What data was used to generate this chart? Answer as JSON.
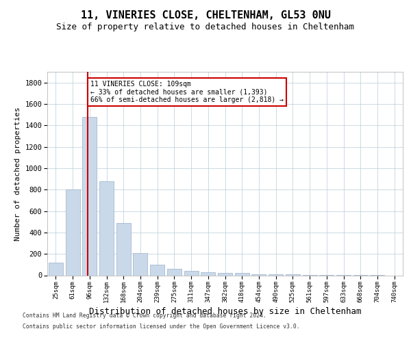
{
  "title1": "11, VINERIES CLOSE, CHELTENHAM, GL53 0NU",
  "title2": "Size of property relative to detached houses in Cheltenham",
  "xlabel": "Distribution of detached houses by size in Cheltenham",
  "ylabel": "Number of detached properties",
  "categories": [
    "25sqm",
    "61sqm",
    "96sqm",
    "132sqm",
    "168sqm",
    "204sqm",
    "239sqm",
    "275sqm",
    "311sqm",
    "347sqm",
    "382sqm",
    "418sqm",
    "454sqm",
    "490sqm",
    "525sqm",
    "561sqm",
    "597sqm",
    "633sqm",
    "668sqm",
    "704sqm",
    "740sqm"
  ],
  "values": [
    120,
    800,
    1480,
    875,
    490,
    205,
    100,
    62,
    40,
    28,
    22,
    20,
    10,
    12,
    8,
    5,
    5,
    4,
    3,
    3,
    0
  ],
  "bar_color": "#c9d9ea",
  "bar_edge_color": "#9ab0c8",
  "vline_color": "#cc0000",
  "vline_x": 1.88,
  "annotation_text": "11 VINERIES CLOSE: 109sqm\n← 33% of detached houses are smaller (1,393)\n66% of semi-detached houses are larger (2,818) →",
  "annotation_box_edge_color": "#cc0000",
  "footer1": "Contains HM Land Registry data © Crown copyright and database right 2024.",
  "footer2": "Contains public sector information licensed under the Open Government Licence v3.0.",
  "ylim": [
    0,
    1900
  ],
  "yticks": [
    0,
    200,
    400,
    600,
    800,
    1000,
    1200,
    1400,
    1600,
    1800
  ],
  "background_color": "#ffffff",
  "grid_color": "#b8ccd8"
}
